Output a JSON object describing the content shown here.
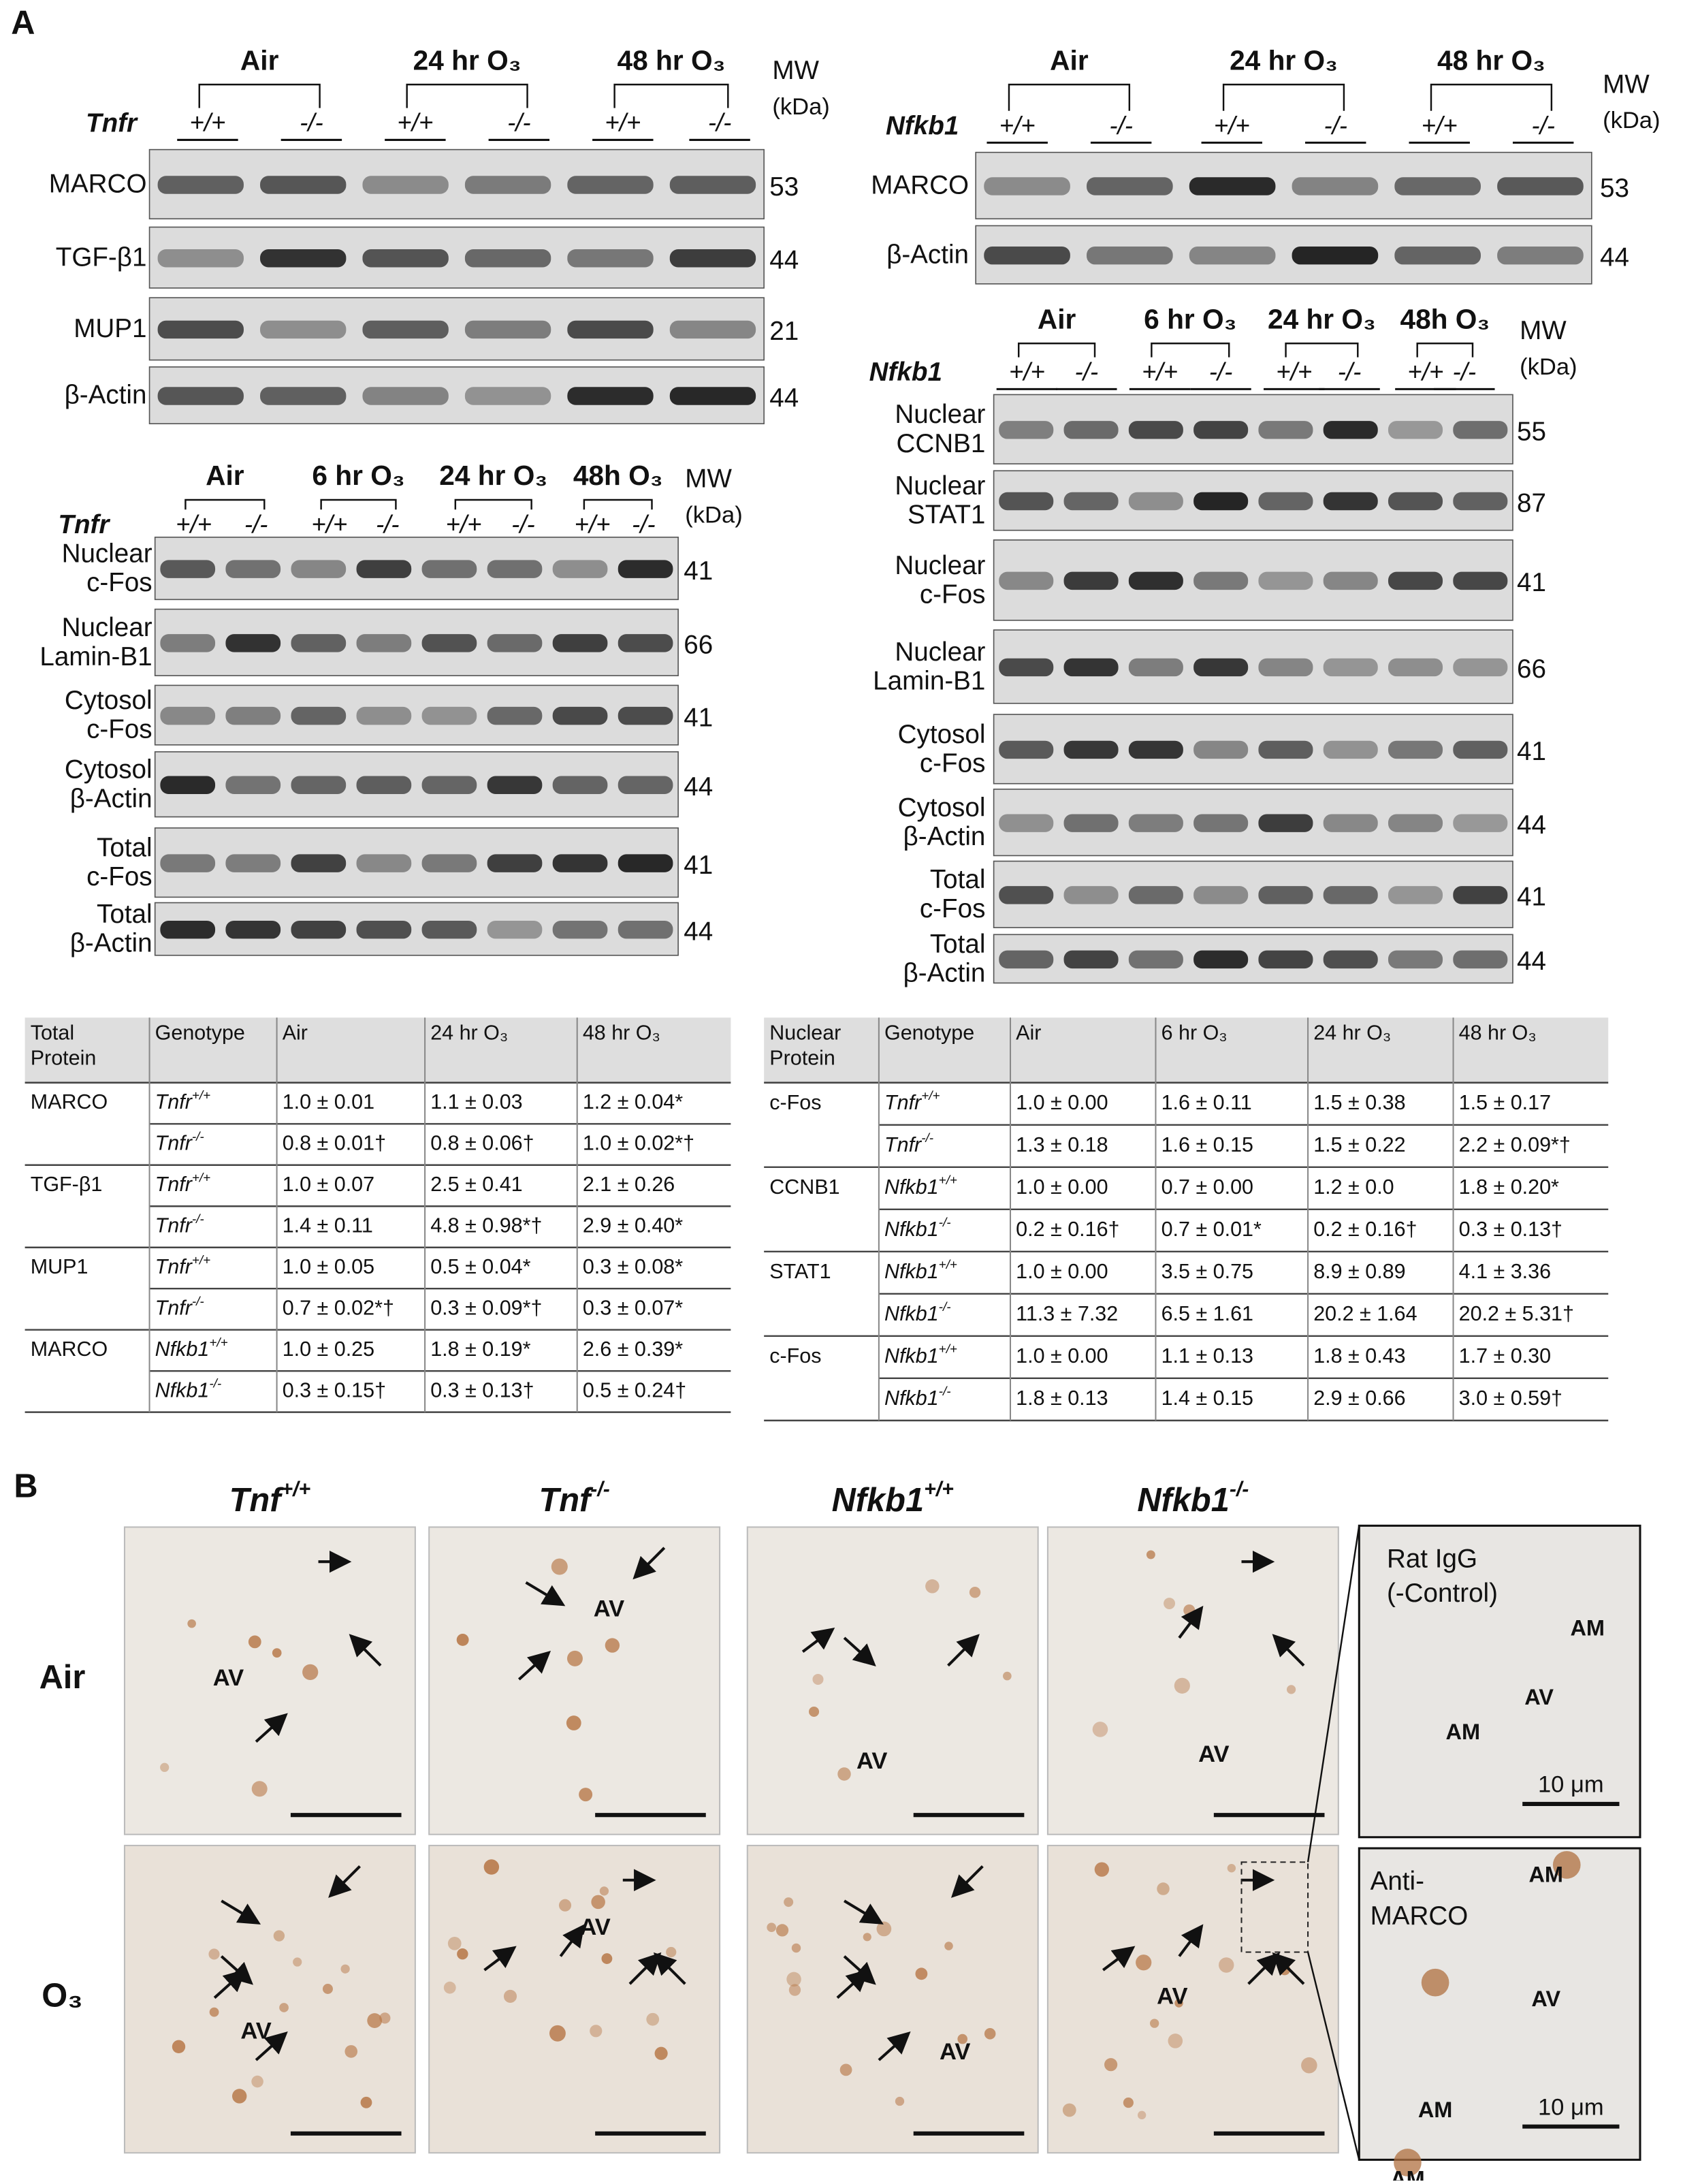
{
  "panel_a": {
    "label": "A",
    "blots": [
      {
        "genotype_label": "Tnfr",
        "groups": [
          "Air",
          "24 hr O₃",
          "48 hr O₃"
        ],
        "genotypes": [
          "+/+",
          "-/-",
          "+/+",
          "-/-",
          "+/+",
          "-/-"
        ],
        "mw_label": "MW",
        "mw_unit": "(kDa)",
        "rows": [
          {
            "label": [
              "MARCO"
            ],
            "mw": 53
          },
          {
            "label": [
              "TGF-β1"
            ],
            "mw": 44
          },
          {
            "label": [
              "MUP1"
            ],
            "mw": 21
          },
          {
            "label": [
              "β-Actin"
            ],
            "mw": 44
          }
        ]
      },
      {
        "genotype_label": "Nfkb1",
        "groups": [
          "Air",
          "24 hr O₃",
          "48 hr O₃"
        ],
        "genotypes": [
          "+/+",
          "-/-",
          "+/+",
          "-/-",
          "+/+",
          "-/-"
        ],
        "mw_label": "MW",
        "mw_unit": "(kDa)",
        "rows": [
          {
            "label": [
              "MARCO"
            ],
            "mw": 53
          },
          {
            "label": [
              "β-Actin"
            ],
            "mw": 44
          }
        ]
      },
      {
        "genotype_label": "Tnfr",
        "groups": [
          "Air",
          "6 hr O₃",
          "24 hr O₃",
          "48h O₃"
        ],
        "genotypes": [
          "+/+",
          "-/-",
          "+/+",
          "-/-",
          "+/+",
          "-/-",
          "+/+",
          "-/-"
        ],
        "mw_label": "MW",
        "mw_unit": "(kDa)",
        "rows": [
          {
            "label": [
              "Nuclear",
              "c-Fos"
            ],
            "mw": 41
          },
          {
            "label": [
              "Nuclear",
              "Lamin-B1"
            ],
            "mw": 66
          },
          {
            "label": [
              "Cytosol",
              "c-Fos"
            ],
            "mw": 41
          },
          {
            "label": [
              "Cytosol",
              "β-Actin"
            ],
            "mw": 44
          },
          {
            "label": [
              "Total",
              "c-Fos"
            ],
            "mw": 41
          },
          {
            "label": [
              "Total",
              "β-Actin"
            ],
            "mw": 44
          }
        ]
      },
      {
        "genotype_label": "Nfkb1",
        "groups": [
          "Air",
          "6 hr O₃",
          "24 hr O₃",
          "48h O₃"
        ],
        "genotypes": [
          "+/+",
          "-/-",
          "+/+",
          "-/-",
          "+/+",
          "-/-",
          "+/+",
          "-/-"
        ],
        "mw_label": "MW",
        "mw_unit": "(kDa)",
        "rows": [
          {
            "label": [
              "Nuclear",
              "CCNB1"
            ],
            "mw": 55
          },
          {
            "label": [
              "Nuclear",
              "STAT1"
            ],
            "mw": 87
          },
          {
            "label": [
              "Nuclear",
              "c-Fos"
            ],
            "mw": 41
          },
          {
            "label": [
              "Nuclear",
              "Lamin-B1"
            ],
            "mw": 66
          },
          {
            "label": [
              "Cytosol",
              "c-Fos"
            ],
            "mw": 41
          },
          {
            "label": [
              "Cytosol",
              "β-Actin"
            ],
            "mw": 44
          },
          {
            "label": [
              "Total",
              "c-Fos"
            ],
            "mw": 41
          },
          {
            "label": [
              "Total",
              "β-Actin"
            ],
            "mw": 44
          }
        ]
      }
    ],
    "tables": [
      {
        "headers": [
          [
            "Total",
            "Protein"
          ],
          [
            "Genotype"
          ],
          [
            "Air"
          ],
          [
            "24 hr O₃"
          ],
          [
            "48 hr O₃"
          ]
        ],
        "rows": [
          {
            "protein": "MARCO",
            "genotype": "Tnfr",
            "sup": "+/+",
            "values": [
              "1.0 ± 0.01",
              "1.1 ± 0.03",
              "1.2 ± 0.04*"
            ]
          },
          {
            "genotype": "Tnfr",
            "sup": "-/-",
            "values": [
              "0.8 ± 0.01†",
              "0.8 ± 0.06†",
              "1.0 ± 0.02*†"
            ]
          },
          {
            "protein": "TGF-β1",
            "genotype": "Tnfr",
            "sup": "+/+",
            "values": [
              "1.0 ± 0.07",
              "2.5 ± 0.41",
              "2.1 ± 0.26"
            ]
          },
          {
            "genotype": "Tnfr",
            "sup": "-/-",
            "values": [
              "1.4 ± 0.11",
              "4.8 ± 0.98*†",
              "2.9 ± 0.40*"
            ]
          },
          {
            "protein": "MUP1",
            "genotype": "Tnfr",
            "sup": "+/+",
            "values": [
              "1.0 ± 0.05",
              "0.5 ± 0.04*",
              "0.3 ± 0.08*"
            ]
          },
          {
            "genotype": "Tnfr",
            "sup": "-/-",
            "values": [
              "0.7 ± 0.02*†",
              "0.3 ± 0.09*†",
              "0.3 ± 0.07*"
            ]
          },
          {
            "protein": "MARCO",
            "genotype": "Nfkb1",
            "sup": "+/+",
            "values": [
              "1.0 ± 0.25",
              "1.8 ± 0.19*",
              "2.6 ± 0.39*"
            ]
          },
          {
            "genotype": "Nfkb1",
            "sup": "-/-",
            "values": [
              "0.3 ± 0.15†",
              "0.3 ± 0.13†",
              "0.5 ± 0.24†"
            ]
          }
        ]
      },
      {
        "headers": [
          [
            "Nuclear",
            "Protein"
          ],
          [
            "Genotype"
          ],
          [
            "Air"
          ],
          [
            "6 hr O₃"
          ],
          [
            "24 hr O₃"
          ],
          [
            "48 hr O₃"
          ]
        ],
        "rows": [
          {
            "protein": "c-Fos",
            "genotype": "Tnfr",
            "sup": "+/+",
            "values": [
              "1.0 ± 0.00",
              "1.6 ± 0.11",
              "1.5 ± 0.38",
              "1.5 ± 0.17"
            ]
          },
          {
            "genotype": "Tnfr",
            "sup": "-/-",
            "values": [
              "1.3 ± 0.18",
              "1.6 ± 0.15",
              "1.5 ± 0.22",
              "2.2 ± 0.09*†"
            ]
          },
          {
            "protein": "CCNB1",
            "genotype": "Nfkb1",
            "sup": "+/+",
            "values": [
              "1.0 ± 0.00",
              "0.7 ± 0.00",
              "1.2 ± 0.0",
              "1.8 ± 0.20*"
            ]
          },
          {
            "genotype": "Nfkb1",
            "sup": "-/-",
            "values": [
              "0.2 ± 0.16†",
              "0.7 ± 0.01*",
              "0.2 ± 0.16†",
              "0.3 ± 0.13†"
            ]
          },
          {
            "protein": "STAT1",
            "genotype": "Nfkb1",
            "sup": "+/+",
            "values": [
              "1.0 ± 0.00",
              "3.5 ± 0.75",
              "8.9 ± 0.89",
              "4.1 ± 3.36"
            ]
          },
          {
            "genotype": "Nfkb1",
            "sup": "-/-",
            "values": [
              "11.3 ± 7.32",
              "6.5 ± 1.61",
              "20.2 ± 1.64",
              "20.2 ± 5.31†"
            ]
          },
          {
            "protein": "c-Fos",
            "genotype": "Nfkb1",
            "sup": "+/+",
            "values": [
              "1.0 ± 0.00",
              "1.1 ± 0.13",
              "1.8 ± 0.43",
              "1.7 ± 0.30"
            ]
          },
          {
            "genotype": "Nfkb1",
            "sup": "-/-",
            "values": [
              "1.8 ± 0.13",
              "1.4 ± 0.15",
              "2.9  ± 0.66",
              "3.0 ± 0.59†"
            ]
          }
        ]
      }
    ]
  },
  "panel_b": {
    "label": "B",
    "columns": [
      {
        "name": "Tnf",
        "sup": "+/+"
      },
      {
        "name": "Tnf",
        "sup": "-/-"
      },
      {
        "name": "Nfkb1",
        "sup": "+/+"
      },
      {
        "name": "Nfkb1",
        "sup": "-/-"
      }
    ],
    "rows": [
      "Air",
      "O₃"
    ],
    "images": [
      {
        "labels": [
          "AV"
        ]
      },
      {
        "labels": [
          "AV"
        ]
      },
      {
        "labels": [
          "AV"
        ]
      },
      {
        "labels": [
          "AV"
        ]
      },
      {
        "labels": [
          "AV"
        ]
      },
      {
        "labels": [
          "AV"
        ]
      },
      {
        "labels": [
          "AV"
        ]
      },
      {
        "labels": [
          "AV"
        ]
      }
    ],
    "insets": [
      {
        "labels": [
          "Rat IgG",
          "(-Control)",
          "AM",
          "AV",
          "AM"
        ],
        "scale": "10 μm"
      },
      {
        "labels": [
          "Anti-",
          "MARCO",
          "AM",
          "AV",
          "AM",
          "AM"
        ],
        "scale": "10 μm"
      }
    ]
  }
}
